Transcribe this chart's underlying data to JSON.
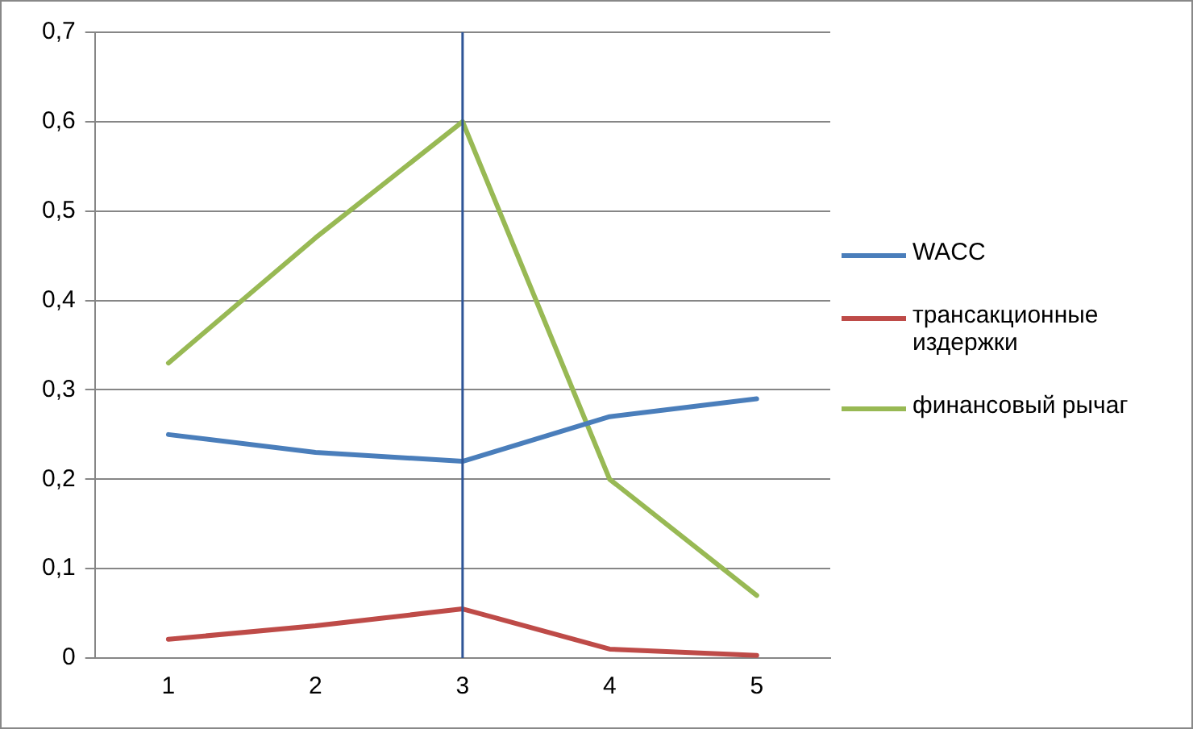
{
  "chart_data": {
    "type": "line",
    "categories": [
      "1",
      "2",
      "3",
      "4",
      "5"
    ],
    "series": [
      {
        "name": "WACC",
        "color": "#4a7ebb",
        "values": [
          0.25,
          0.23,
          0.22,
          0.27,
          0.29
        ]
      },
      {
        "name": "трансакционные издержки",
        "color": "#be4b48",
        "values": [
          0.021,
          0.036,
          0.055,
          0.01,
          0.003
        ]
      },
      {
        "name": "финансовый рычаг",
        "color": "#98b954",
        "values": [
          0.33,
          0.47,
          0.6,
          0.2,
          0.07
        ]
      }
    ],
    "ylim": [
      0,
      0.7
    ],
    "yticks": [
      0,
      {
        "value": 0.1,
        "label": "0,1"
      },
      {
        "value": 0.2,
        "label": "0,2"
      },
      {
        "value": 0.3,
        "label": "0,3"
      },
      {
        "value": 0.4,
        "label": "0,4"
      },
      {
        "value": 0.5,
        "label": "0,5"
      },
      {
        "value": 0.6,
        "label": "0,6"
      },
      {
        "value": 0.7,
        "label": "0,7"
      }
    ],
    "ref_lines": [
      {
        "axis": "x",
        "value": "3",
        "color": "#2f5597"
      }
    ],
    "grid": "y",
    "legend": "right",
    "marker": "none",
    "line_style": "solid"
  }
}
